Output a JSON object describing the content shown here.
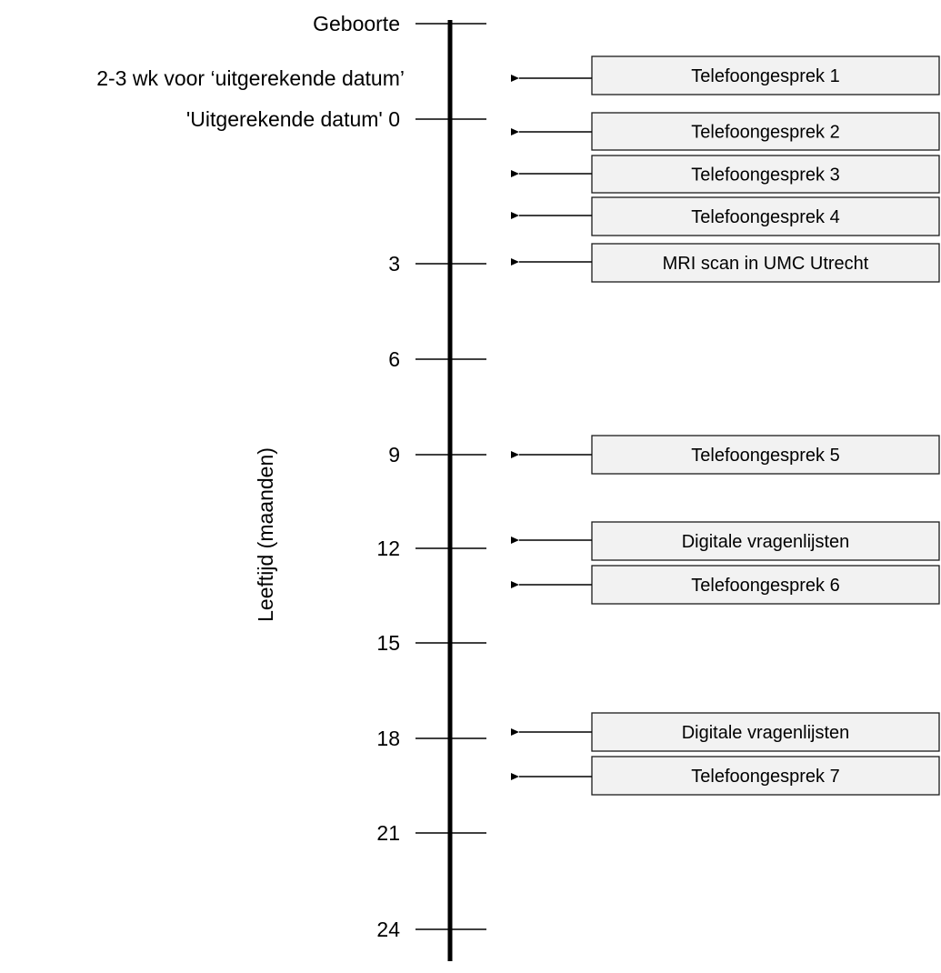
{
  "axis_title": "Leeftijd (maanden)",
  "colors": {
    "line": "#000000",
    "box_fill": "#f2f2f2",
    "box_stroke": "#1a1a1a",
    "text": "#000000"
  },
  "ticks": [
    {
      "label": "Geboorte"
    },
    {
      "label": "2-3 wk voor ‘uitgerekende datum’"
    },
    {
      "label": "'Uitgerekende datum' 0"
    },
    {
      "label": "3"
    },
    {
      "label": "6"
    },
    {
      "label": "9"
    },
    {
      "label": "12"
    },
    {
      "label": "15"
    },
    {
      "label": "18"
    },
    {
      "label": "21"
    },
    {
      "label": "24"
    }
  ],
  "events": [
    {
      "label": "Telefoongesprek 1"
    },
    {
      "label": "Telefoongesprek 2"
    },
    {
      "label": "Telefoongesprek 3"
    },
    {
      "label": "Telefoongesprek 4"
    },
    {
      "label": "MRI scan in UMC Utrecht"
    },
    {
      "label": "Telefoongesprek 5"
    },
    {
      "label": "Digitale vragenlijsten"
    },
    {
      "label": "Telefoongesprek 6"
    },
    {
      "label": "Digitale vragenlijsten"
    },
    {
      "label": "Telefoongesprek 7"
    }
  ]
}
